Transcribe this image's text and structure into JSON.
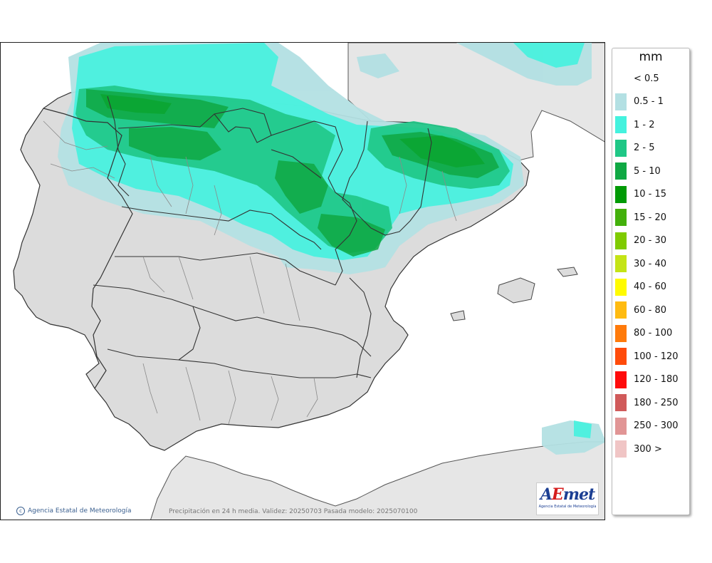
{
  "legend": {
    "unit": "mm",
    "classes": [
      {
        "label": "< 0.5",
        "color": null
      },
      {
        "label": "0.5 - 1",
        "color": "#b3e0e3"
      },
      {
        "label": "1 - 2",
        "color": "#44f2de"
      },
      {
        "label": "2 - 5",
        "color": "#1fc786"
      },
      {
        "label": "5 - 10",
        "color": "#0fa843"
      },
      {
        "label": "10 - 15",
        "color": "#009a05"
      },
      {
        "label": "15 - 20",
        "color": "#43b00b"
      },
      {
        "label": "20 - 30",
        "color": "#7fcb00"
      },
      {
        "label": "30 - 40",
        "color": "#c4e416"
      },
      {
        "label": "40 - 60",
        "color": "#fffb00"
      },
      {
        "label": "60 - 80",
        "color": "#ffbb10"
      },
      {
        "label": "80 - 100",
        "color": "#ff7a0a"
      },
      {
        "label": "100 - 120",
        "color": "#ff4b0a"
      },
      {
        "label": "120 - 180",
        "color": "#ff0b0b"
      },
      {
        "label": "180 - 250",
        "color": "#d05a5a"
      },
      {
        "label": "250 - 300",
        "color": "#e19595"
      },
      {
        "label": "300 >",
        "color": "#f0c5c5"
      }
    ]
  },
  "map": {
    "credit": "Agencia Estatal de Meteorología",
    "caption": "Precipitación en 24 h media. Validez: 20250703 Pasada modelo: 2025070100",
    "logo_text": "AEmet",
    "logo_subtitle": "Agencia Estatal de Meteorología"
  }
}
